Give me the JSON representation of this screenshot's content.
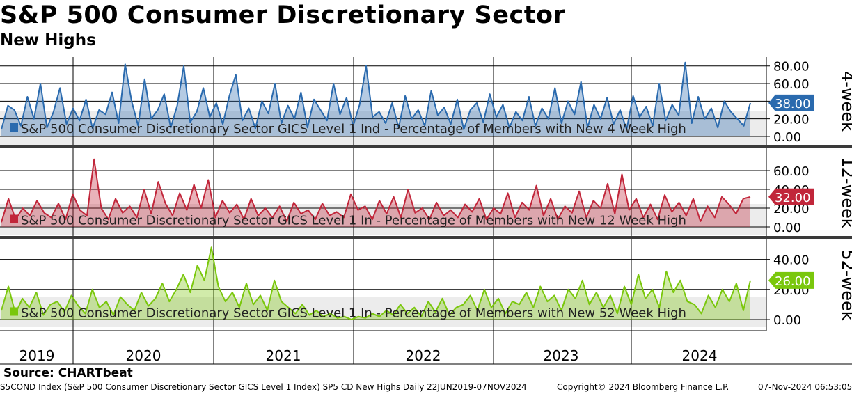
{
  "title": "S&P 500 Consumer Discretionary Sector",
  "subtitle": "New Highs",
  "source": "Source: CHARTbeat",
  "footer": {
    "description": "S5COND Index (S&P 500 Consumer Discretionary Sector GICS Level 1 Index) SP5 CD New Highs  Daily 22JUN2019-07NOV2024",
    "copyright": "Copyright© 2024 Bloomberg Finance L.P.",
    "timestamp": "07-Nov-2024 06:53:05"
  },
  "colors": {
    "blue": "#2a6aae",
    "red": "#c1263a",
    "green": "#7ac70c"
  },
  "chart_data": [
    {
      "type": "line",
      "panel_label": "4-week",
      "legend": "S&P 500 Consumer Discretionary Sector GICS Level 1 Ind - Percentage of Members with New 4 Week High",
      "y_ticks": [
        "80.00",
        "60.00",
        "40.00",
        "20.00",
        "0.00"
      ],
      "ylim": [
        0,
        85
      ],
      "last_value_label": "38.00",
      "x_categories": [
        "2019",
        "2020",
        "2021",
        "2022",
        "2023",
        "2024"
      ],
      "series": [
        {
          "x_start": "2019-06-22",
          "x_end": "2024-11-07",
          "values": [
            8,
            35,
            30,
            12,
            45,
            20,
            60,
            10,
            28,
            55,
            14,
            32,
            18,
            42,
            9,
            30,
            25,
            50,
            15,
            82,
            40,
            12,
            65,
            20,
            30,
            48,
            10,
            35,
            80,
            16,
            28,
            55,
            22,
            38,
            14,
            46,
            70,
            18,
            32,
            9,
            40,
            26,
            60,
            15,
            35,
            20,
            50,
            10,
            42,
            30,
            18,
            60,
            25,
            44,
            12,
            36,
            80,
            22,
            28,
            15,
            38,
            10,
            46,
            20,
            30,
            12,
            52,
            24,
            33,
            14,
            42,
            8,
            30,
            38,
            16,
            48,
            22,
            36,
            10,
            28,
            18,
            45,
            12,
            32,
            20,
            55,
            15,
            40,
            25,
            62,
            10,
            36,
            20,
            44,
            14,
            30,
            8,
            46,
            22,
            34,
            12,
            60,
            18,
            36,
            24,
            84,
            15,
            45,
            20,
            32,
            10,
            40,
            28,
            20,
            12,
            38
          ]
        }
      ]
    },
    {
      "type": "line",
      "panel_label": "12-week",
      "legend": "S&P 500 Consumer Discretionary Sector GICS Level 1 In - Percentage of Members with New 12 Week High",
      "y_ticks": [
        "60.00",
        "40.00",
        "20.00",
        "0.00"
      ],
      "ylim": [
        0,
        75
      ],
      "last_value_label": "32.00",
      "x_categories": [
        "2019",
        "2020",
        "2021",
        "2022",
        "2023",
        "2024"
      ],
      "series": [
        {
          "x_start": "2019-06-22",
          "x_end": "2024-11-07",
          "values": [
            5,
            30,
            8,
            20,
            12,
            28,
            15,
            10,
            25,
            8,
            35,
            18,
            12,
            72,
            20,
            8,
            30,
            15,
            22,
            10,
            40,
            14,
            48,
            25,
            12,
            36,
            18,
            45,
            20,
            50,
            10,
            28,
            15,
            24,
            8,
            30,
            12,
            20,
            10,
            22,
            6,
            26,
            14,
            18,
            8,
            25,
            12,
            16,
            10,
            35,
            18,
            22,
            8,
            28,
            14,
            32,
            10,
            40,
            15,
            20,
            8,
            26,
            12,
            18,
            10,
            24,
            16,
            30,
            8,
            20,
            14,
            36,
            10,
            26,
            18,
            44,
            12,
            30,
            8,
            22,
            15,
            38,
            10,
            28,
            20,
            46,
            14,
            56,
            18,
            30,
            10,
            24,
            8,
            34,
            16,
            26,
            12,
            30,
            6,
            22,
            10,
            32,
            24,
            14,
            30,
            32
          ]
        }
      ]
    },
    {
      "type": "line",
      "panel_label": "52-week",
      "legend": "S&P 500 Consumer Discretionary Sector GICS Level 1 In - Percentage of Members with New 52 Week High",
      "y_ticks": [
        "40.00",
        "20.00",
        "0.00"
      ],
      "ylim": [
        0,
        55
      ],
      "last_value_label": "26.00",
      "x_categories": [
        "2019",
        "2020",
        "2021",
        "2022",
        "2023",
        "2024"
      ],
      "series": [
        {
          "x_start": "2019-06-22",
          "x_end": "2024-11-07",
          "values": [
            6,
            22,
            4,
            14,
            8,
            18,
            3,
            10,
            12,
            5,
            16,
            9,
            4,
            20,
            8,
            12,
            3,
            15,
            10,
            6,
            18,
            9,
            14,
            24,
            12,
            20,
            30,
            18,
            36,
            26,
            48,
            22,
            12,
            18,
            8,
            24,
            10,
            16,
            6,
            26,
            12,
            8,
            4,
            10,
            3,
            6,
            2,
            4,
            1,
            2,
            0,
            2,
            1,
            4,
            2,
            6,
            3,
            10,
            4,
            8,
            2,
            12,
            5,
            14,
            3,
            8,
            10,
            16,
            6,
            20,
            8,
            14,
            4,
            12,
            10,
            18,
            8,
            22,
            12,
            16,
            6,
            20,
            14,
            26,
            10,
            18,
            8,
            16,
            4,
            22,
            10,
            30,
            14,
            20,
            8,
            32,
            18,
            26,
            12,
            10,
            4,
            16,
            8,
            20,
            12,
            24,
            6,
            26
          ]
        }
      ]
    }
  ]
}
